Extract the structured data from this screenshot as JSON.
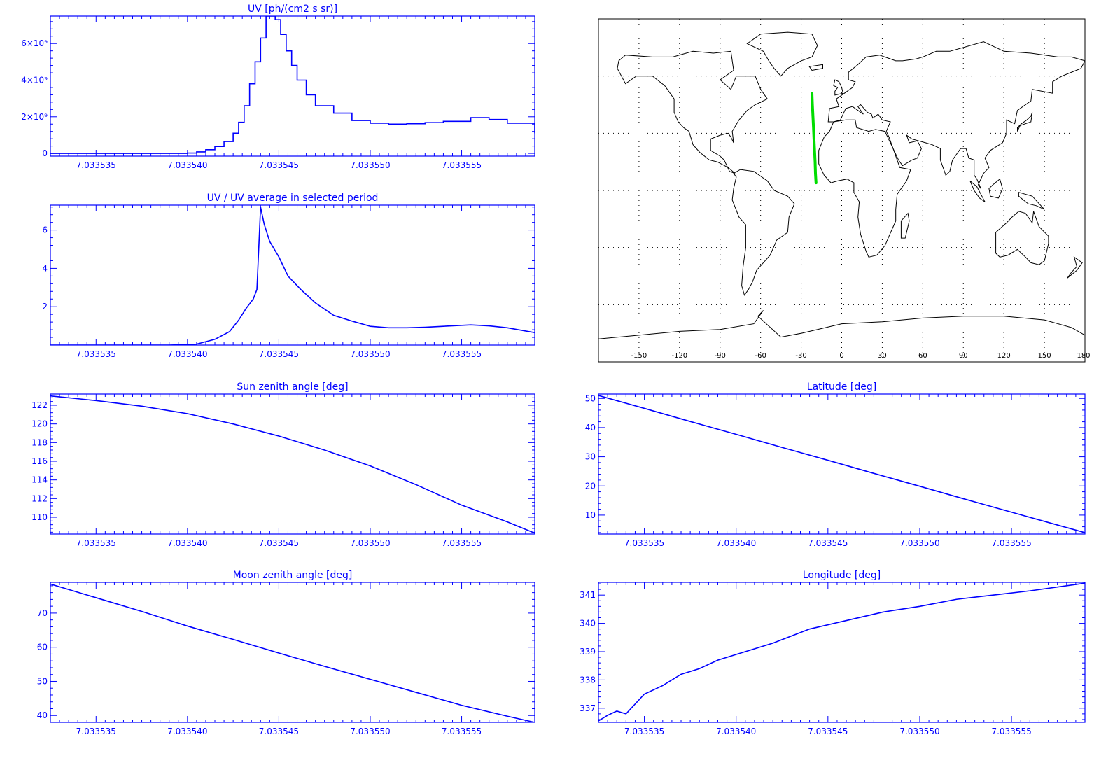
{
  "colors": {
    "plot": "#0000ff",
    "track": "#00dd00",
    "map": "#000000",
    "background": "#ffffff"
  },
  "chart_data": [
    {
      "id": "uv",
      "type": "line",
      "style": "step",
      "title": "UV [ph/(cm2 s sr)]",
      "xlim": [
        7.0335325,
        7.033559
      ],
      "ylim": [
        -150000000,
        7500000000
      ],
      "xticks": [
        {
          "value": 7.033535,
          "label": "7.033535"
        },
        {
          "value": 7.03354,
          "label": "7.033540"
        },
        {
          "value": 7.033545,
          "label": "7.033545"
        },
        {
          "value": 7.03355,
          "label": "7.033550"
        },
        {
          "value": 7.033555,
          "label": "7.033555"
        }
      ],
      "yticks": [
        {
          "value": 0,
          "label": "0"
        },
        {
          "value": 2000000000,
          "label": "2×10⁹"
        },
        {
          "value": 4000000000,
          "label": "4×10⁹"
        },
        {
          "value": 6000000000,
          "label": "6×10⁹"
        }
      ],
      "x": [
        7.0335325,
        7.033538,
        7.03354,
        7.0335405,
        7.033541,
        7.0335415,
        7.033542,
        7.0335425,
        7.0335428,
        7.0335431,
        7.0335434,
        7.0335437,
        7.033544,
        7.0335443,
        7.0335445,
        7.0335448,
        7.0335451,
        7.0335454,
        7.0335457,
        7.033546,
        7.0335465,
        7.033547,
        7.033548,
        7.033549,
        7.03355,
        7.033551,
        7.033552,
        7.033553,
        7.033554,
        7.0335555,
        7.0335565,
        7.0335575,
        7.033559
      ],
      "y": [
        0,
        0,
        20000000,
        80000000,
        200000000,
        380000000,
        650000000,
        1100000000,
        1700000000,
        2600000000,
        3800000000,
        5000000000,
        6300000000,
        7500000000,
        7500000000,
        7300000000,
        6500000000,
        5600000000,
        4800000000,
        4000000000,
        3200000000,
        2600000000,
        2200000000,
        1800000000,
        1650000000,
        1600000000,
        1620000000,
        1680000000,
        1750000000,
        1950000000,
        1850000000,
        1650000000,
        1100000000
      ]
    },
    {
      "id": "uv-ratio",
      "type": "line",
      "title": "UV / UV average in selected period",
      "xlim": [
        7.0335325,
        7.033559
      ],
      "ylim": [
        0,
        7.3
      ],
      "xticks": [
        {
          "value": 7.033535,
          "label": "7.033535"
        },
        {
          "value": 7.03354,
          "label": "7.033540"
        },
        {
          "value": 7.033545,
          "label": "7.033545"
        },
        {
          "value": 7.03355,
          "label": "7.033550"
        },
        {
          "value": 7.033555,
          "label": "7.033555"
        }
      ],
      "yticks": [
        {
          "value": 2,
          "label": "2"
        },
        {
          "value": 4,
          "label": "4"
        },
        {
          "value": 6,
          "label": "6"
        }
      ],
      "x": [
        7.0335325,
        7.033539,
        7.0335405,
        7.0335415,
        7.0335423,
        7.0335428,
        7.0335432,
        7.0335436,
        7.0335438,
        7.033544,
        7.0335442,
        7.0335445,
        7.033545,
        7.0335455,
        7.0335462,
        7.033547,
        7.033548,
        7.033549,
        7.03355,
        7.033551,
        7.033552,
        7.033553,
        7.033554,
        7.0335555,
        7.0335565,
        7.0335575,
        7.033559
      ],
      "y": [
        0,
        0,
        0.05,
        0.3,
        0.7,
        1.3,
        1.9,
        2.4,
        2.9,
        7.2,
        6.3,
        5.4,
        4.6,
        3.6,
        2.9,
        2.2,
        1.55,
        1.25,
        0.98,
        0.9,
        0.9,
        0.93,
        0.98,
        1.05,
        1.0,
        0.9,
        0.65
      ]
    },
    {
      "id": "sun-zenith",
      "type": "line",
      "title": "Sun zenith angle [deg]",
      "xlim": [
        7.0335325,
        7.033559
      ],
      "ylim": [
        108.2,
        123.2
      ],
      "xticks": [
        {
          "value": 7.033535,
          "label": "7.033535"
        },
        {
          "value": 7.03354,
          "label": "7.033540"
        },
        {
          "value": 7.033545,
          "label": "7.033545"
        },
        {
          "value": 7.03355,
          "label": "7.033550"
        },
        {
          "value": 7.033555,
          "label": "7.033555"
        }
      ],
      "yticks": [
        {
          "value": 110,
          "label": "110"
        },
        {
          "value": 112,
          "label": "112"
        },
        {
          "value": 114,
          "label": "114"
        },
        {
          "value": 116,
          "label": "116"
        },
        {
          "value": 118,
          "label": "118"
        },
        {
          "value": 120,
          "label": "120"
        },
        {
          "value": 122,
          "label": "122"
        }
      ],
      "x": [
        7.0335325,
        7.033535,
        7.0335375,
        7.03354,
        7.0335425,
        7.033545,
        7.0335475,
        7.03355,
        7.0335525,
        7.033555,
        7.0335575,
        7.033559
      ],
      "y": [
        123.0,
        122.5,
        121.9,
        121.1,
        120.0,
        118.7,
        117.2,
        115.5,
        113.5,
        111.3,
        109.5,
        108.3
      ]
    },
    {
      "id": "moon-zenith",
      "type": "line",
      "title": "Moon zenith angle [deg]",
      "xlim": [
        7.0335325,
        7.033559
      ],
      "ylim": [
        38,
        79
      ],
      "xticks": [
        {
          "value": 7.033535,
          "label": "7.033535"
        },
        {
          "value": 7.03354,
          "label": "7.033540"
        },
        {
          "value": 7.033545,
          "label": "7.033545"
        },
        {
          "value": 7.03355,
          "label": "7.033550"
        },
        {
          "value": 7.033555,
          "label": "7.033555"
        }
      ],
      "yticks": [
        {
          "value": 40,
          "label": "40"
        },
        {
          "value": 50,
          "label": "50"
        },
        {
          "value": 60,
          "label": "60"
        },
        {
          "value": 70,
          "label": "70"
        }
      ],
      "x": [
        7.0335325,
        7.033535,
        7.0335375,
        7.03354,
        7.0335425,
        7.033545,
        7.0335475,
        7.03355,
        7.0335525,
        7.033555,
        7.0335575,
        7.033559
      ],
      "y": [
        78.5,
        74.5,
        70.5,
        66.2,
        62.3,
        58.3,
        54.4,
        50.6,
        46.8,
        43.0,
        39.8,
        38.0
      ]
    },
    {
      "id": "latitude",
      "type": "line",
      "title": "Latitude [deg]",
      "xlim": [
        7.0335325,
        7.033559
      ],
      "ylim": [
        3.5,
        51.5
      ],
      "xticks": [
        {
          "value": 7.033535,
          "label": "7.033535"
        },
        {
          "value": 7.03354,
          "label": "7.033540"
        },
        {
          "value": 7.033545,
          "label": "7.033545"
        },
        {
          "value": 7.03355,
          "label": "7.033550"
        },
        {
          "value": 7.033555,
          "label": "7.033555"
        }
      ],
      "yticks": [
        {
          "value": 10,
          "label": "10"
        },
        {
          "value": 20,
          "label": "20"
        },
        {
          "value": 30,
          "label": "30"
        },
        {
          "value": 40,
          "label": "40"
        },
        {
          "value": 50,
          "label": "50"
        }
      ],
      "x": [
        7.0335325,
        7.033535,
        7.0335375,
        7.03354,
        7.0335425,
        7.033545,
        7.0335475,
        7.03355,
        7.0335525,
        7.033555,
        7.0335575,
        7.033559
      ],
      "y": [
        51.0,
        46.6,
        42.1,
        37.7,
        33.2,
        28.8,
        24.3,
        19.9,
        15.4,
        11.0,
        6.6,
        4.0
      ]
    },
    {
      "id": "longitude",
      "type": "line",
      "title": "Longitude [deg]",
      "xlim": [
        7.0335325,
        7.033559
      ],
      "ylim": [
        336.5,
        341.45
      ],
      "xticks": [
        {
          "value": 7.033535,
          "label": "7.033535"
        },
        {
          "value": 7.03354,
          "label": "7.033540"
        },
        {
          "value": 7.033545,
          "label": "7.033545"
        },
        {
          "value": 7.03355,
          "label": "7.033550"
        },
        {
          "value": 7.033555,
          "label": "7.033555"
        }
      ],
      "yticks": [
        {
          "value": 337,
          "label": "337"
        },
        {
          "value": 338,
          "label": "338"
        },
        {
          "value": 339,
          "label": "339"
        },
        {
          "value": 340,
          "label": "340"
        },
        {
          "value": 341,
          "label": "341"
        }
      ],
      "x": [
        7.0335325,
        7.033533,
        7.0335335,
        7.033534,
        7.033535,
        7.033536,
        7.033537,
        7.033538,
        7.033539,
        7.03354,
        7.033542,
        7.033544,
        7.033546,
        7.033548,
        7.03355,
        7.033552,
        7.033554,
        7.033556,
        7.033559
      ],
      "y": [
        336.55,
        336.75,
        336.9,
        336.8,
        337.5,
        337.8,
        338.2,
        338.4,
        338.7,
        338.9,
        339.3,
        339.8,
        340.1,
        340.4,
        340.6,
        340.85,
        341.0,
        341.15,
        341.42
      ]
    },
    {
      "id": "map",
      "type": "scatter",
      "title": "",
      "xlim": [
        -180,
        180
      ],
      "ylim": [
        -90,
        90
      ],
      "xticks": [
        {
          "value": -150,
          "label": "-150"
        },
        {
          "value": -120,
          "label": "-120"
        },
        {
          "value": -90,
          "label": "-90"
        },
        {
          "value": -60,
          "label": "-60"
        },
        {
          "value": -30,
          "label": "-30"
        },
        {
          "value": 0,
          "label": "0"
        },
        {
          "value": 30,
          "label": "30"
        },
        {
          "value": 60,
          "label": "60"
        },
        {
          "value": 90,
          "label": "90"
        },
        {
          "value": 120,
          "label": "120"
        },
        {
          "value": 150,
          "label": "150"
        },
        {
          "value": 180,
          "label": "180"
        }
      ],
      "grid": true,
      "track": {
        "lon": [
          -22.0,
          -21.7,
          -21.3,
          -20.9,
          -20.5,
          -20.1,
          -19.7,
          -19.4,
          -19.0
        ],
        "lat": [
          51.0,
          45.0,
          39.0,
          33.0,
          27.0,
          21.0,
          15.0,
          9.0,
          4.0
        ]
      }
    }
  ]
}
